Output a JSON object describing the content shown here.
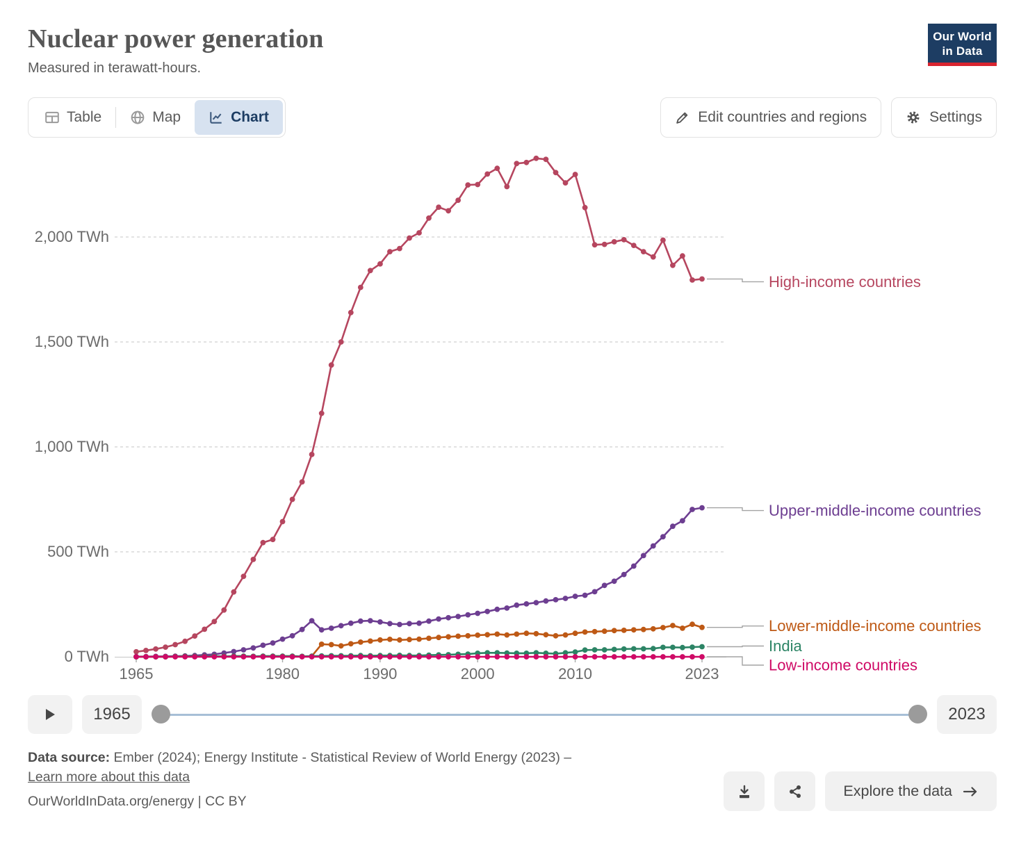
{
  "header": {
    "title": "Nuclear power generation",
    "subtitle": "Measured in terawatt-hours.",
    "logo_line1": "Our World",
    "logo_line2": "in Data",
    "logo_bg": "#1d3d63",
    "logo_bar": "#d8242f"
  },
  "toolbar": {
    "tabs": [
      {
        "id": "table",
        "label": "Table",
        "active": false
      },
      {
        "id": "map",
        "label": "Map",
        "active": false
      },
      {
        "id": "chart",
        "label": "Chart",
        "active": true
      }
    ],
    "edit_button": "Edit countries and regions",
    "settings_button": "Settings",
    "active_tab_bg": "#d7e2f0",
    "active_tab_color": "#1d3d63"
  },
  "chart_data": {
    "type": "line",
    "title": "Nuclear power generation",
    "unit": "TWh",
    "ylim": [
      0,
      2400
    ],
    "grid": true,
    "legend_position": "right",
    "years": [
      1965,
      1966,
      1967,
      1968,
      1969,
      1970,
      1971,
      1972,
      1973,
      1974,
      1975,
      1976,
      1977,
      1978,
      1979,
      1980,
      1981,
      1982,
      1983,
      1984,
      1985,
      1986,
      1987,
      1988,
      1989,
      1990,
      1991,
      1992,
      1993,
      1994,
      1995,
      1996,
      1997,
      1998,
      1999,
      2000,
      2001,
      2002,
      2003,
      2004,
      2005,
      2006,
      2007,
      2008,
      2009,
      2010,
      2011,
      2012,
      2013,
      2014,
      2015,
      2016,
      2017,
      2018,
      2019,
      2020,
      2021,
      2022,
      2023
    ],
    "series": [
      {
        "name": "High-income countries",
        "color": "#b6465f",
        "values": [
          24,
          30,
          37,
          46,
          58,
          74,
          99,
          131,
          168,
          223,
          309,
          383,
          464,
          544,
          559,
          644,
          750,
          833,
          964,
          1160,
          1390,
          1500,
          1640,
          1760,
          1840,
          1872,
          1930,
          1945,
          1995,
          2020,
          2090,
          2142,
          2125,
          2175,
          2248,
          2250,
          2300,
          2327,
          2240,
          2350,
          2355,
          2375,
          2370,
          2307,
          2258,
          2298,
          2140,
          1963,
          1965,
          1977,
          1987,
          1960,
          1930,
          1905,
          1985,
          1865,
          1910,
          1795,
          1800
        ]
      },
      {
        "name": "Upper-middle-income countries",
        "color": "#6d3e91",
        "values": [
          1,
          1,
          2,
          2,
          3,
          4,
          6,
          9,
          12,
          18,
          25,
          33,
          42,
          55,
          66,
          84,
          100,
          130,
          172,
          128,
          136,
          148,
          160,
          170,
          172,
          166,
          158,
          154,
          158,
          160,
          170,
          180,
          186,
          192,
          200,
          207,
          216,
          226,
          232,
          246,
          252,
          258,
          266,
          272,
          278,
          288,
          293,
          310,
          340,
          360,
          392,
          432,
          482,
          528,
          572,
          622,
          648,
          702,
          710
        ]
      },
      {
        "name": "Lower-middle-income countries",
        "color": "#be5915",
        "values": [
          0,
          0,
          0,
          0,
          1,
          2,
          2,
          2,
          3,
          2,
          3,
          3,
          2,
          3,
          3,
          3,
          3,
          2,
          3,
          60,
          58,
          52,
          62,
          70,
          75,
          80,
          83,
          80,
          82,
          84,
          88,
          92,
          95,
          98,
          100,
          103,
          105,
          108,
          104,
          108,
          112,
          110,
          105,
          100,
          104,
          112,
          118,
          120,
          122,
          125,
          126,
          128,
          130,
          133,
          139,
          149,
          136,
          155,
          140
        ]
      },
      {
        "name": "India",
        "color": "#2c8465",
        "values": [
          0,
          0,
          0,
          0,
          1,
          2,
          2,
          2,
          3,
          2,
          3,
          3,
          2,
          3,
          3,
          3,
          3,
          2,
          3,
          4,
          5,
          5,
          5,
          6,
          5,
          6,
          6,
          7,
          6,
          6,
          8,
          9,
          10,
          12,
          13,
          17,
          19,
          19,
          18,
          17,
          17,
          19,
          17,
          15,
          19,
          23,
          32,
          33,
          33,
          35,
          37,
          38,
          38,
          39,
          45,
          45,
          44,
          46,
          48
        ]
      },
      {
        "name": "Low-income countries",
        "color": "#cf0a66",
        "values": [
          0,
          0,
          0,
          0,
          0,
          0,
          0,
          0,
          0,
          0,
          0,
          0,
          0,
          0,
          0,
          0,
          0,
          0,
          0,
          0,
          0,
          0,
          0,
          0,
          0,
          0,
          0,
          0,
          0,
          0,
          0,
          0,
          0,
          0,
          0,
          0,
          0,
          0,
          0,
          0,
          0,
          0,
          0,
          0,
          0,
          0,
          0,
          0,
          0,
          0,
          0,
          0,
          0,
          0,
          0,
          0,
          0,
          0,
          0
        ]
      }
    ],
    "yticks": [
      {
        "value": 0,
        "label": "0 TWh"
      },
      {
        "value": 500,
        "label": "500 TWh"
      },
      {
        "value": 1000,
        "label": "1,000 TWh"
      },
      {
        "value": 1500,
        "label": "1,500 TWh"
      },
      {
        "value": 2000,
        "label": "2,000 TWh"
      }
    ],
    "xticks": [
      {
        "year": 1965,
        "label": "1965"
      },
      {
        "year": 1980,
        "label": "1980"
      },
      {
        "year": 1990,
        "label": "1990"
      },
      {
        "year": 2000,
        "label": "2000"
      },
      {
        "year": 2010,
        "label": "2010"
      },
      {
        "year": 2023,
        "label": "2023"
      }
    ]
  },
  "timeline": {
    "start_year": "1965",
    "end_year": "2023"
  },
  "footer": {
    "datasource_prefix": "Data source:",
    "datasource_text": " Ember (2024); Energy Institute - Statistical Review of World Energy (2023) –",
    "learn_more": "Learn more about this data",
    "note": "OurWorldInData.org/energy | CC BY",
    "explore_button": "Explore the data"
  }
}
